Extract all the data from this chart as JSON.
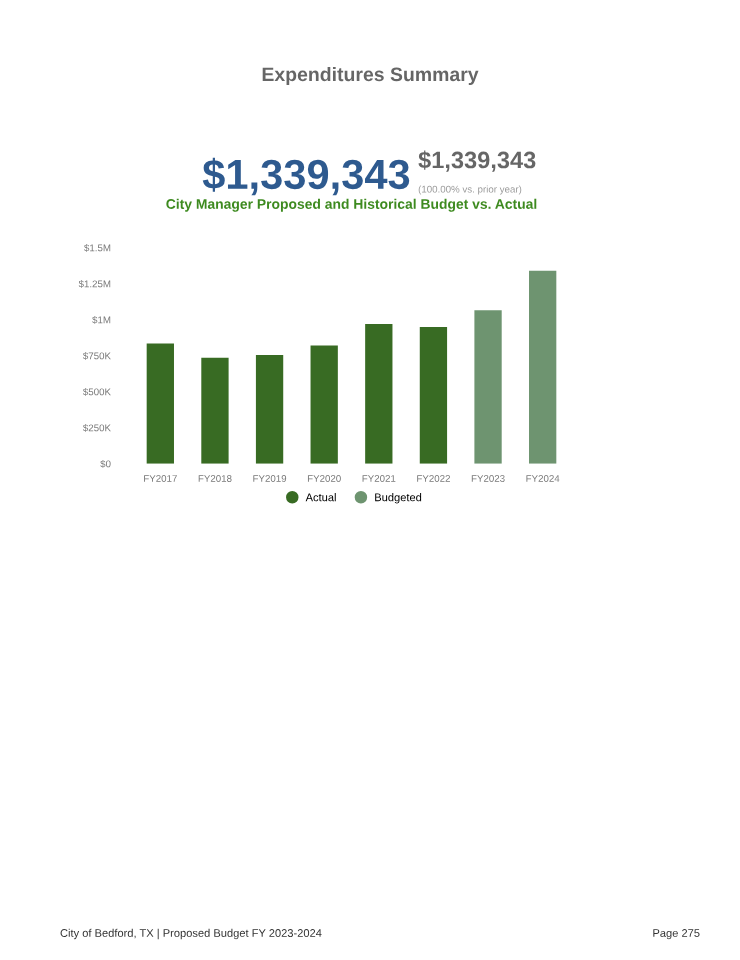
{
  "chart_data": {
    "type": "bar",
    "title": "City Manager Proposed and Historical Budget vs. Actual",
    "annotations": [
      "Expenditures Summary",
      "$1,339,343",
      "$1,339,343",
      "(100.00% vs. prior year)",
      "City of Bedford, TX | Proposed Budget FY 2023-2024",
      "Page 275"
    ],
    "categories": [
      "FY2017",
      "FY2018",
      "FY2019",
      "FY2020",
      "FY2021",
      "FY2022",
      "FY2023",
      "FY2024"
    ],
    "series": [
      {
        "name": "Actual",
        "color": "#386b23",
        "values": [
          835000,
          735000,
          755000,
          820000,
          970000,
          950000,
          null,
          null
        ]
      },
      {
        "name": "Budgeted",
        "color": "#6e9470",
        "values": [
          null,
          null,
          null,
          null,
          null,
          null,
          1065000,
          1340000
        ]
      }
    ],
    "stacked": true,
    "ylim": [
      0,
      1500000
    ],
    "yticks": [
      {
        "value": 0,
        "label": "$0"
      },
      {
        "value": 250000,
        "label": "$250K"
      },
      {
        "value": 500000,
        "label": "$500K"
      },
      {
        "value": 750000,
        "label": "$750K"
      },
      {
        "value": 1000000,
        "label": "$1M"
      },
      {
        "value": 1250000,
        "label": "$1.25M"
      },
      {
        "value": 1500000,
        "label": "$1.5M"
      }
    ],
    "grid": false,
    "legend": "bottom"
  }
}
